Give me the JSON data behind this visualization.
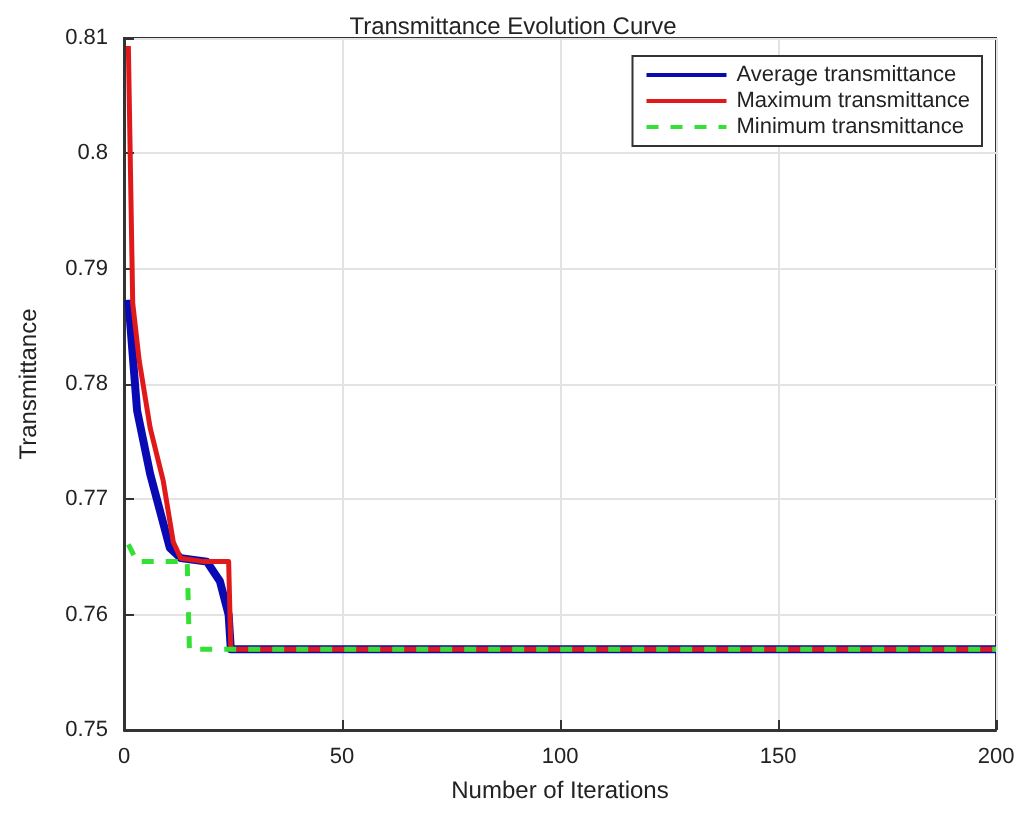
{
  "chart_data": {
    "type": "line",
    "title": "Transmittance Evolution Curve",
    "xlabel": "Number of Iterations",
    "ylabel": "Transmittance",
    "xlim": [
      0,
      200
    ],
    "xticks": [
      0,
      50,
      100,
      150,
      200
    ],
    "ylim": [
      0.75,
      0.81
    ],
    "yticks": [
      0.75,
      0.76,
      0.77,
      0.78,
      0.79,
      0.8,
      0.81
    ],
    "grid": true,
    "legend": "top right",
    "marker": "none",
    "series": [
      {
        "name": "Average transmittance",
        "color": "#0a0ab4",
        "line_style": "solid",
        "x": [
          1,
          3,
          6,
          10.5,
          13,
          19,
          22,
          24,
          24.5,
          200
        ],
        "values": [
          0.7873,
          0.7777,
          0.7722,
          0.7658,
          0.7649,
          0.7646,
          0.7629,
          0.76,
          0.757,
          0.757
        ]
      },
      {
        "name": "Maximum transmittance",
        "color": "#e01a1a",
        "line_style": "solid",
        "x": [
          1,
          2,
          3.5,
          6,
          9,
          11.3,
          13,
          18.5,
          24,
          24.5,
          200
        ],
        "values": [
          0.8093,
          0.787,
          0.782,
          0.7762,
          0.7716,
          0.7663,
          0.7649,
          0.7646,
          0.7646,
          0.757,
          0.757
        ]
      },
      {
        "name": "Minimum transmittance",
        "color": "#33e033",
        "line_style": "dashed",
        "x": [
          1,
          3,
          14.5,
          15,
          200
        ],
        "values": [
          0.7661,
          0.7646,
          0.7646,
          0.757,
          0.757
        ]
      }
    ]
  }
}
